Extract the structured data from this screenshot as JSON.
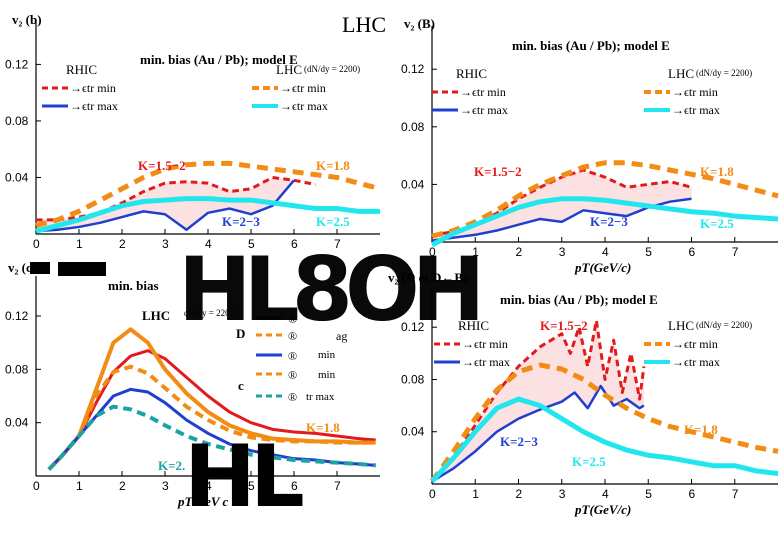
{
  "header": {
    "title": "LHC"
  },
  "artifacts": {
    "top": "HL8OH",
    "bottom": "HL"
  },
  "colors": {
    "red": "#e31a1c",
    "blue": "#1f3fd0",
    "orange": "#f28c14",
    "cyan": "#22e6ee",
    "teal": "#1aa3a0",
    "shade_red": "#f7c9c9",
    "shade_blue": "#b9bde8"
  },
  "chart_data": [
    {
      "type": "line",
      "panel_label": "(b)",
      "ylabel": "v₂",
      "title": "min. bias (Au / Pb); model E",
      "xlim": [
        0,
        8
      ],
      "ylim": [
        0,
        0.15
      ],
      "xticks": [
        0,
        1,
        2,
        3,
        4,
        5,
        6,
        7
      ],
      "yticks": [
        0.04,
        0.08,
        0.12
      ],
      "legend_left": {
        "heading": "RHIC",
        "items": [
          "→ϵtr min",
          "→ϵtr max"
        ]
      },
      "legend_right": {
        "heading": "LHC",
        "sub": "(dN/dy = 2200)",
        "items": [
          "→ϵtr min",
          "→ϵtr max"
        ]
      },
      "annotations": [
        "K=1.5−2",
        "K=1.8",
        "K=2−3",
        "K=2.5"
      ],
      "series": [
        {
          "key": "rhic_min",
          "color": "#e31a1c",
          "dash": "dashed",
          "width": 3,
          "x": [
            0,
            0.5,
            1,
            1.5,
            2,
            2.5,
            3,
            3.5,
            4,
            4.5,
            5,
            5.5,
            6,
            6.5
          ],
          "y": [
            0.01,
            0.01,
            0.012,
            0.015,
            0.022,
            0.03,
            0.036,
            0.037,
            0.036,
            0.03,
            0.032,
            0.04,
            0.038,
            0.035
          ]
        },
        {
          "key": "rhic_max",
          "color": "#1f3fd0",
          "dash": "solid",
          "width": 2.5,
          "x": [
            0,
            0.5,
            1,
            1.5,
            2,
            2.5,
            3,
            3.5,
            4,
            4.5,
            5,
            5.5,
            6
          ],
          "y": [
            0.002,
            0.003,
            0.005,
            0.008,
            0.012,
            0.016,
            0.014,
            0.003,
            0.015,
            0.018,
            0.014,
            0.02,
            0.038
          ]
        },
        {
          "key": "lhc_min",
          "color": "#f28c14",
          "dash": "dashed",
          "width": 5,
          "x": [
            0,
            0.5,
            1,
            1.5,
            2,
            2.5,
            3,
            3.5,
            4,
            4.5,
            5,
            5.5,
            6,
            6.5,
            7,
            7.5,
            8
          ],
          "y": [
            0.006,
            0.01,
            0.016,
            0.024,
            0.032,
            0.04,
            0.046,
            0.049,
            0.05,
            0.05,
            0.048,
            0.046,
            0.044,
            0.042,
            0.04,
            0.036,
            0.032
          ]
        },
        {
          "key": "lhc_max",
          "color": "#22e6ee",
          "dash": "solid",
          "width": 5,
          "x": [
            0,
            0.5,
            1,
            1.5,
            2,
            2.5,
            3,
            3.5,
            4,
            4.5,
            5,
            5.5,
            6,
            6.5,
            7,
            7.5,
            8
          ],
          "y": [
            0.002,
            0.006,
            0.01,
            0.015,
            0.02,
            0.023,
            0.024,
            0.025,
            0.025,
            0.024,
            0.024,
            0.022,
            0.02,
            0.018,
            0.018,
            0.016,
            0.016
          ]
        }
      ]
    },
    {
      "type": "line",
      "panel_label": "(B)",
      "ylabel": "v₂",
      "xlabel": "pT(GeV/c)",
      "title": "min. bias (Au / Pb); model E",
      "xlim": [
        0,
        8
      ],
      "ylim": [
        0,
        0.15
      ],
      "xticks": [
        0,
        1,
        2,
        3,
        4,
        5,
        6,
        7
      ],
      "yticks": [
        0.04,
        0.08,
        0.12
      ],
      "legend_left": {
        "heading": "RHIC",
        "items": [
          "→ϵtr min",
          "→ϵtr max"
        ]
      },
      "legend_right": {
        "heading": "LHC",
        "sub": "(dN/dy = 2200)",
        "items": [
          "→ϵtr min",
          "→ϵtr max"
        ]
      },
      "annotations": [
        "K=1.5−2",
        "K=1.8",
        "K=2−3",
        "K=2.5"
      ],
      "series": [
        {
          "key": "rhic_min",
          "color": "#e31a1c",
          "dash": "dashed",
          "width": 3,
          "x": [
            0,
            0.5,
            1,
            1.5,
            2,
            2.5,
            3,
            3.5,
            4,
            4.5,
            5,
            5.5,
            6
          ],
          "y": [
            0.005,
            0.007,
            0.012,
            0.02,
            0.03,
            0.038,
            0.045,
            0.05,
            0.045,
            0.038,
            0.04,
            0.042,
            0.038
          ]
        },
        {
          "key": "rhic_max",
          "color": "#1f3fd0",
          "dash": "solid",
          "width": 2.5,
          "x": [
            0,
            0.5,
            1,
            1.5,
            2,
            2.5,
            3,
            3.5,
            4,
            4.5,
            5,
            5.5,
            6
          ],
          "y": [
            0.001,
            0.003,
            0.005,
            0.008,
            0.012,
            0.016,
            0.014,
            0.022,
            0.02,
            0.018,
            0.024,
            0.028,
            0.03
          ]
        },
        {
          "key": "lhc_min",
          "color": "#f28c14",
          "dash": "dashed",
          "width": 5,
          "x": [
            0,
            0.5,
            1,
            1.5,
            2,
            2.5,
            3,
            3.5,
            4,
            4.5,
            5,
            5.5,
            6,
            6.5,
            7,
            7.5,
            8
          ],
          "y": [
            0.004,
            0.008,
            0.014,
            0.022,
            0.032,
            0.04,
            0.046,
            0.052,
            0.055,
            0.055,
            0.053,
            0.05,
            0.047,
            0.044,
            0.04,
            0.036,
            0.032
          ]
        },
        {
          "key": "lhc_max",
          "color": "#22e6ee",
          "dash": "solid",
          "width": 5,
          "x": [
            0,
            0.5,
            1,
            1.5,
            2,
            2.5,
            3,
            3.5,
            4,
            4.5,
            5,
            5.5,
            6,
            6.5,
            7,
            7.5,
            8
          ],
          "y": [
            -0.002,
            0.006,
            0.012,
            0.018,
            0.024,
            0.028,
            0.03,
            0.03,
            0.029,
            0.027,
            0.025,
            0.023,
            0.021,
            0.02,
            0.018,
            0.017,
            0.016
          ]
        }
      ]
    },
    {
      "type": "line",
      "panel_label": "(cD",
      "ylabel": "v₂",
      "xlabel": "pT GeV c",
      "title": "min. bias",
      "xlim": [
        0,
        8
      ],
      "ylim": [
        0,
        0.15
      ],
      "xticks": [
        0,
        1,
        2,
        3,
        4,
        5,
        6,
        7
      ],
      "yticks": [
        0.04,
        0.08,
        0.12
      ],
      "legend_text": [
        "LHC",
        "dN/dy = 2200",
        "D",
        "c",
        "®",
        "®",
        "®",
        "®",
        "®",
        "ag",
        "min",
        "min",
        "tr max"
      ],
      "annotations": [
        "K=1.8",
        "K=2."
      ],
      "series": [
        {
          "key": "red_solid",
          "color": "#e31a1c",
          "dash": "solid",
          "width": 3,
          "x": [
            0.3,
            0.6,
            1,
            1.4,
            1.8,
            2.2,
            2.6,
            3,
            3.5,
            4,
            4.5,
            5,
            5.5,
            6,
            6.5,
            7,
            7.5,
            7.9
          ],
          "y": [
            0.005,
            0.015,
            0.03,
            0.055,
            0.078,
            0.09,
            0.094,
            0.088,
            0.074,
            0.06,
            0.048,
            0.04,
            0.035,
            0.033,
            0.032,
            0.03,
            0.028,
            0.027
          ]
        },
        {
          "key": "orange_solid",
          "color": "#f28c14",
          "dash": "solid",
          "width": 4,
          "x": [
            0.3,
            0.6,
            1,
            1.4,
            1.8,
            2.2,
            2.6,
            3,
            3.5,
            4,
            4.5,
            5,
            5.5,
            6,
            6.5,
            7,
            7.5,
            7.9
          ],
          "y": [
            0.005,
            0.015,
            0.03,
            0.065,
            0.1,
            0.11,
            0.1,
            0.08,
            0.062,
            0.048,
            0.038,
            0.032,
            0.028,
            0.027,
            0.026,
            0.026,
            0.025,
            0.025
          ]
        },
        {
          "key": "orange_dashed",
          "color": "#f28c14",
          "dash": "dashed",
          "width": 4,
          "x": [
            0.3,
            0.6,
            1,
            1.4,
            1.8,
            2.2,
            2.6,
            3,
            3.5,
            4,
            4.5,
            5,
            5.5,
            6,
            6.5,
            7,
            7.5,
            7.9
          ],
          "y": [
            0.005,
            0.015,
            0.03,
            0.06,
            0.078,
            0.082,
            0.077,
            0.066,
            0.052,
            0.042,
            0.034,
            0.029,
            0.027,
            0.026,
            0.026,
            0.025,
            0.025,
            0.025
          ]
        },
        {
          "key": "blue_solid",
          "color": "#1f3fd0",
          "dash": "solid",
          "width": 3,
          "x": [
            0.3,
            0.6,
            1,
            1.4,
            1.8,
            2.2,
            2.6,
            3,
            3.5,
            4,
            4.5,
            5,
            5.5,
            6,
            6.5,
            7,
            7.5,
            7.9
          ],
          "y": [
            0.005,
            0.015,
            0.03,
            0.045,
            0.06,
            0.065,
            0.063,
            0.055,
            0.042,
            0.032,
            0.024,
            0.019,
            0.016,
            0.013,
            0.012,
            0.01,
            0.009,
            0.008
          ]
        },
        {
          "key": "teal_dashed",
          "color": "#1aa3a0",
          "dash": "dashed",
          "width": 4,
          "x": [
            0.3,
            0.6,
            1,
            1.4,
            1.8,
            2.2,
            2.6,
            3,
            3.5,
            4,
            4.5,
            5,
            5.5,
            6,
            6.5,
            7,
            7.5,
            7.9
          ],
          "y": [
            0.005,
            0.015,
            0.03,
            0.045,
            0.052,
            0.05,
            0.045,
            0.038,
            0.03,
            0.024,
            0.02,
            0.016,
            0.014,
            0.012,
            0.011,
            0.01,
            0.009,
            0.008
          ]
        }
      ]
    },
    {
      "type": "line",
      "panel_label": "(D et D←B)",
      "ylabel": "v₂",
      "xlabel": "pT(GeV/c)",
      "title": "min. bias (Au / Pb); model E",
      "xlim": [
        0,
        8
      ],
      "ylim": [
        0,
        0.15
      ],
      "xticks": [
        0,
        1,
        2,
        3,
        4,
        5,
        6,
        7
      ],
      "yticks": [
        0.04,
        0.08,
        0.12
      ],
      "legend_left": {
        "heading": "RHIC",
        "items": [
          "→ϵtr min",
          "→ϵtr max"
        ]
      },
      "legend_right": {
        "heading": "LHC",
        "sub": "(dN/dy = 2200)",
        "items": [
          "→ϵtr min",
          "→ϵtr max"
        ]
      },
      "annotations": [
        "K=1.5−2",
        "K=1.8",
        "K=2−3",
        "K=2.5"
      ],
      "series": [
        {
          "key": "rhic_min",
          "color": "#e31a1c",
          "dash": "dashed",
          "width": 3,
          "x": [
            0,
            0.5,
            1,
            1.5,
            2,
            2.5,
            3,
            3.2,
            3.4,
            3.6,
            3.8,
            4,
            4.2,
            4.4,
            4.6,
            4.8,
            4.9
          ],
          "y": [
            0.002,
            0.02,
            0.045,
            0.07,
            0.09,
            0.105,
            0.115,
            0.1,
            0.12,
            0.09,
            0.125,
            0.08,
            0.11,
            0.07,
            0.1,
            0.065,
            0.09
          ]
        },
        {
          "key": "rhic_max",
          "color": "#1f3fd0",
          "dash": "solid",
          "width": 2.5,
          "x": [
            0,
            0.5,
            1,
            1.5,
            2,
            2.5,
            3,
            3.3,
            3.6,
            3.9,
            4.2,
            4.5,
            4.8,
            4.9
          ],
          "y": [
            0.002,
            0.012,
            0.025,
            0.04,
            0.05,
            0.057,
            0.063,
            0.07,
            0.058,
            0.075,
            0.06,
            0.065,
            0.058,
            0.06
          ]
        },
        {
          "key": "lhc_min",
          "color": "#f28c14",
          "dash": "dashed",
          "width": 5,
          "x": [
            0,
            0.5,
            1,
            1.5,
            2,
            2.5,
            3,
            3.5,
            4,
            4.5,
            5,
            5.5,
            6,
            6.5,
            7,
            7.5,
            8
          ],
          "y": [
            0.002,
            0.025,
            0.05,
            0.072,
            0.086,
            0.091,
            0.088,
            0.08,
            0.068,
            0.058,
            0.05,
            0.044,
            0.04,
            0.036,
            0.032,
            0.028,
            0.025
          ]
        },
        {
          "key": "lhc_max",
          "color": "#22e6ee",
          "dash": "solid",
          "width": 5,
          "x": [
            0,
            0.5,
            1,
            1.5,
            2,
            2.5,
            3,
            3.5,
            4,
            4.5,
            5,
            5.5,
            6,
            6.5,
            7,
            7.5,
            8
          ],
          "y": [
            0.002,
            0.02,
            0.04,
            0.058,
            0.065,
            0.06,
            0.05,
            0.04,
            0.032,
            0.026,
            0.022,
            0.02,
            0.017,
            0.014,
            0.014,
            0.01,
            0.008
          ]
        }
      ]
    }
  ]
}
